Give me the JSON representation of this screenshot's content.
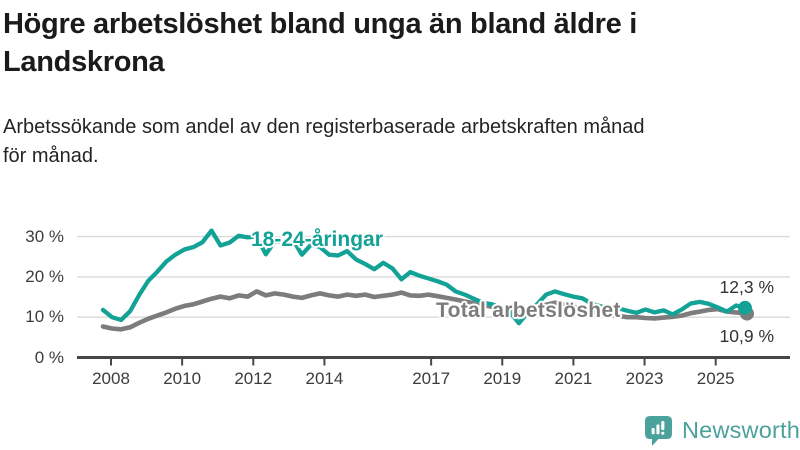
{
  "header": {
    "title_lines": [
      "Högre arbetslöshet bland unga än bland äldre i",
      "Landskrona"
    ],
    "subtitle_lines": [
      "Arbetssökande som andel av den registerbaserade arbetskraften månad",
      "för månad."
    ]
  },
  "footer": {
    "brand": "Newsworthy",
    "brand_color": "#4ba19c",
    "logo_icon": "speech-bubble-bar-chart-icon"
  },
  "chart_data": {
    "type": "line",
    "title": "Högre arbetslöshet bland unga än bland äldre i Landskrona",
    "subtitle": "Arbetssökande som andel av den registerbaserade arbetskraften månad för månad.",
    "grid": "horizontal-only",
    "x": {
      "start_year": 2008,
      "step_months": 3,
      "end_year": 2025.75
    },
    "x_axis": {
      "ticks": [
        {
          "year": 2008,
          "label": "2008"
        },
        {
          "year": 2010,
          "label": "2010"
        },
        {
          "year": 2012,
          "label": "2012"
        },
        {
          "year": 2014,
          "label": "2014"
        },
        {
          "year": 2017,
          "label": "2017"
        },
        {
          "year": 2019,
          "label": "2019"
        },
        {
          "year": 2021,
          "label": "2021"
        },
        {
          "year": 2023,
          "label": "2023"
        },
        {
          "year": 2025,
          "label": "2025"
        }
      ]
    },
    "y_axis": {
      "ticks": [
        {
          "value": 30,
          "label": "30 %"
        },
        {
          "value": 20,
          "label": "20 %"
        },
        {
          "value": 10,
          "label": "10 %"
        },
        {
          "value": 0,
          "label": "0 %"
        }
      ],
      "ylim": [
        0,
        33
      ]
    },
    "series": [
      {
        "name": "Total arbetslöshet",
        "color": "#7c7c7c",
        "end_label": "10,9 %",
        "end_value": 10.9,
        "values": [
          7.7,
          7.2,
          7.0,
          7.5,
          8.6,
          9.6,
          10.4,
          11.2,
          12.1,
          12.8,
          13.2,
          13.9,
          14.6,
          15.1,
          14.7,
          15.4,
          15.1,
          16.4,
          15.4,
          15.9,
          15.6,
          15.1,
          14.8,
          15.4,
          15.9,
          15.4,
          15.1,
          15.6,
          15.3,
          15.6,
          15.0,
          15.3,
          15.6,
          16.1,
          15.4,
          15.3,
          15.6,
          15.2,
          14.8,
          14.4,
          13.9,
          13.5,
          13.0,
          12.6,
          12.1,
          11.7,
          11.2,
          11.6,
          12.2,
          13.1,
          13.6,
          13.1,
          12.6,
          12.1,
          11.5,
          11.0,
          10.6,
          10.3,
          10.0,
          10.0,
          9.8,
          9.7,
          9.9,
          10.1,
          10.4,
          11.0,
          11.4,
          11.8,
          12.0,
          11.4,
          11.2,
          10.9
        ]
      },
      {
        "name": "18-24-åringar",
        "color": "#12a296",
        "end_label": "12,3 %",
        "end_value": 12.3,
        "values": [
          11.8,
          10.0,
          9.3,
          11.5,
          15.5,
          19.0,
          21.3,
          23.8,
          25.5,
          26.8,
          27.4,
          28.6,
          31.5,
          27.8,
          28.5,
          30.2,
          29.8,
          30.0,
          25.6,
          28.8,
          28.6,
          29.2,
          25.5,
          28.0,
          27.4,
          25.5,
          25.3,
          26.4,
          24.3,
          23.2,
          21.9,
          23.5,
          22.1,
          19.4,
          21.2,
          20.3,
          19.6,
          18.9,
          18.1,
          16.4,
          15.6,
          14.6,
          13.6,
          13.2,
          12.4,
          11.3,
          8.5,
          11.2,
          13.2,
          15.6,
          16.4,
          15.7,
          15.1,
          14.7,
          13.4,
          12.7,
          12.4,
          12.2,
          11.6,
          11.1,
          11.9,
          11.2,
          11.7,
          10.7,
          11.9,
          13.4,
          13.8,
          13.3,
          12.4,
          11.4,
          12.9,
          12.3
        ]
      }
    ],
    "legend_position": "inline-labels-on-lines"
  }
}
